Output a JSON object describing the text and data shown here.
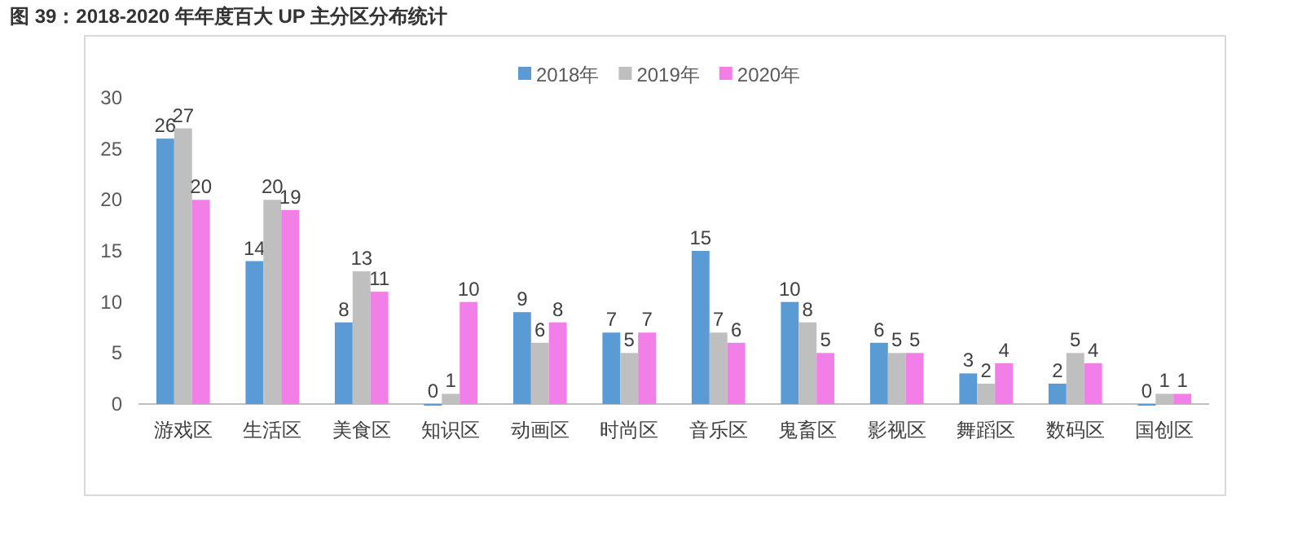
{
  "chart_data": {
    "type": "bar",
    "title": "图 39：2018-2020 年年度百大 UP 主分区分布统计",
    "categories": [
      "游戏区",
      "生活区",
      "美食区",
      "知识区",
      "动画区",
      "时尚区",
      "音乐区",
      "鬼畜区",
      "影视区",
      "舞蹈区",
      "数码区",
      "国创区"
    ],
    "series": [
      {
        "name": "2018年",
        "color": "#5b9bd5",
        "values": [
          26,
          14,
          8,
          0,
          9,
          7,
          15,
          10,
          6,
          3,
          2,
          0
        ]
      },
      {
        "name": "2019年",
        "color": "#bfbfbf",
        "values": [
          27,
          20,
          13,
          1,
          6,
          5,
          7,
          8,
          5,
          2,
          5,
          1
        ]
      },
      {
        "name": "2020年",
        "color": "#f27fe8",
        "values": [
          20,
          19,
          11,
          10,
          8,
          7,
          6,
          5,
          5,
          4,
          4,
          1
        ]
      }
    ],
    "ylim": [
      0,
      30
    ],
    "yticks": [
      0,
      5,
      10,
      15,
      20,
      25,
      30
    ],
    "grid": false,
    "legend": "top",
    "data_labels": true
  }
}
